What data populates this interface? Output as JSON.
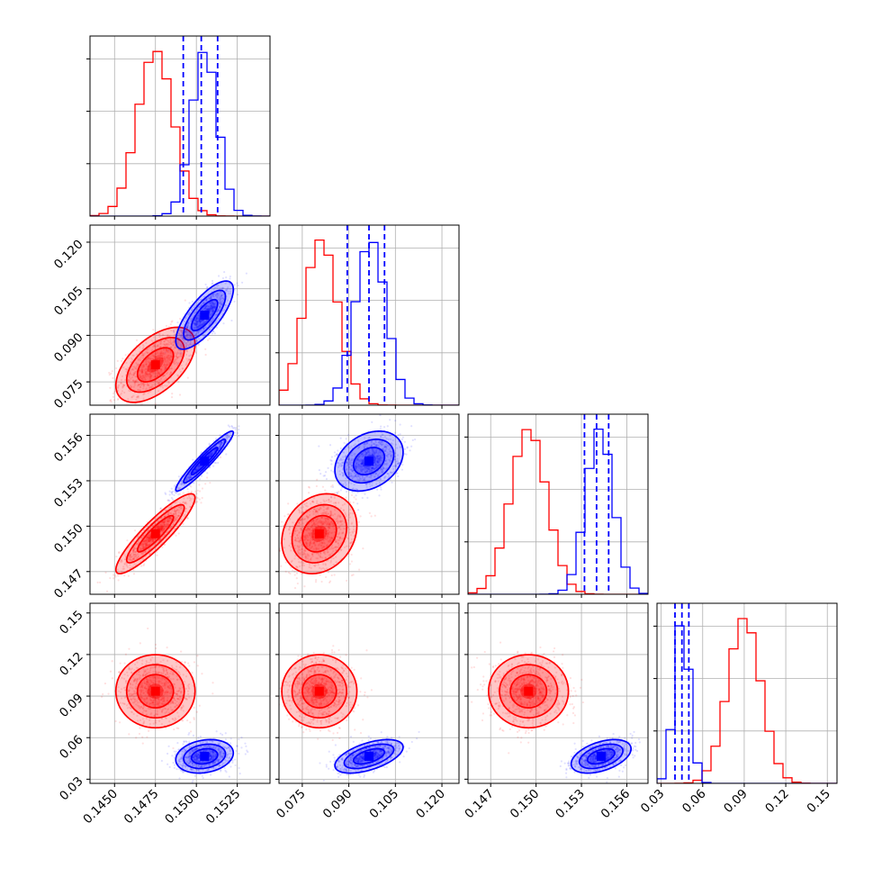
{
  "chart_data": {
    "type": "scatter",
    "title": "",
    "parameters": [
      {
        "ticks": [
          "0.1450",
          "0.1475",
          "0.1500",
          "0.1525"
        ],
        "tick_values": [
          0.145,
          0.1475,
          0.15,
          0.1525
        ],
        "range": [
          0.1435,
          0.1545
        ]
      },
      {
        "ticks": [
          "0.075",
          "0.090",
          "0.105",
          "0.120"
        ],
        "tick_values": [
          0.075,
          0.09,
          0.105,
          0.12
        ],
        "range": [
          0.0675,
          0.1255
        ]
      },
      {
        "ticks": [
          "0.147",
          "0.150",
          "0.153",
          "0.156"
        ],
        "tick_values": [
          0.147,
          0.15,
          0.153,
          0.156
        ],
        "range": [
          0.1455,
          0.1574
        ]
      },
      {
        "ticks": [
          "0.03",
          "0.06",
          "0.09",
          "0.12",
          "0.15"
        ],
        "tick_values": [
          0.03,
          0.06,
          0.09,
          0.12,
          0.15
        ],
        "range": [
          0.027,
          0.157
        ]
      }
    ],
    "series": [
      {
        "color": "#ff0000",
        "means": [
          0.1475,
          0.0805,
          0.1495,
          0.0935
        ],
        "sds": [
          0.0011,
          0.0055,
          0.0012,
          0.012
        ],
        "corr": [
          [
            1,
            0.55,
            0.9,
            0
          ],
          [
            0.55,
            1,
            0.2,
            0
          ],
          [
            0.9,
            0.2,
            1,
            0
          ],
          [
            0,
            0,
            0,
            1
          ]
        ],
        "hist_peaks": [
          0.1475,
          0.081,
          0.1495,
          0.09
        ]
      },
      {
        "color": "#0000ff",
        "means": [
          0.1505,
          0.0965,
          0.1543,
          0.0465
        ],
        "sds": [
          0.0008,
          0.005,
          0.0009,
          0.0055
        ],
        "corr": [
          [
            1,
            0.75,
            0.95,
            0.2
          ],
          [
            0.75,
            1,
            0.3,
            0.55
          ],
          [
            0.95,
            0.3,
            1,
            0.45
          ],
          [
            0.2,
            0.55,
            0.45,
            1
          ]
        ],
        "hist_peaks": [
          0.1505,
          0.097,
          0.1542,
          0.045
        ],
        "quantiles": [
          [
            0.1492,
            0.1503,
            0.1513
          ],
          [
            0.0895,
            0.0965,
            0.1015
          ],
          [
            0.1532,
            0.154,
            0.1548
          ],
          [
            0.04,
            0.045,
            0.05
          ]
        ]
      }
    ],
    "grid": true,
    "legend": "none"
  }
}
